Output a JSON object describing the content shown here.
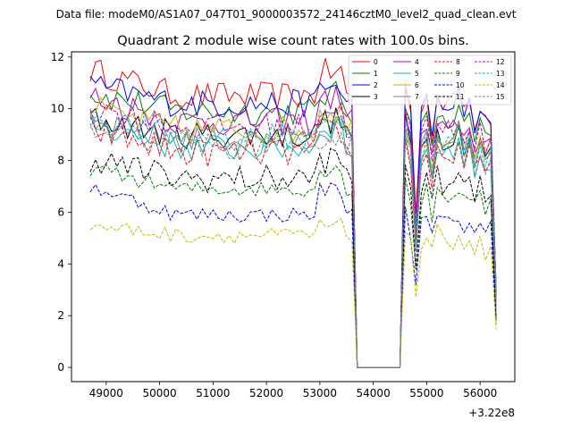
{
  "chart_data": {
    "type": "line",
    "suptitle": "Data file: modeM0/AS1A07_047T01_9000003572_24146cztM0_level2_quad_clean.evt",
    "title": "Quadrant 2 module wise count rates with 100.0s bins.",
    "xlabel": "",
    "ylabel": "",
    "x_offset_label": "+3.22e8",
    "xlim": [
      48350,
      56650
    ],
    "ylim": [
      -0.55,
      12.2
    ],
    "x_ticks": [
      49000,
      50000,
      51000,
      52000,
      53000,
      54000,
      55000,
      56000
    ],
    "x_tick_labels": [
      "49000",
      "50000",
      "51000",
      "52000",
      "53000",
      "54000",
      "55000",
      "56000"
    ],
    "y_ticks": [
      0,
      2,
      4,
      6,
      8,
      10,
      12
    ],
    "y_tick_labels": [
      "0",
      "2",
      "4",
      "6",
      "8",
      "10",
      "12"
    ],
    "legend": {
      "location": "top-right",
      "columns": 4
    },
    "segments": [
      {
        "x_start": 48700,
        "x_end": 53600,
        "shape": "wiggle"
      },
      {
        "x_start": 53700,
        "x_end": 54500,
        "shape": "zero"
      },
      {
        "x_start": 54600,
        "x_end": 56300,
        "shape": "end"
      }
    ],
    "series": [
      {
        "name": "0",
        "color": "#ff0000",
        "dashed": false,
        "start": 11.5,
        "mean": 10.5
      },
      {
        "name": "1",
        "color": "#008000",
        "dashed": false,
        "start": 10.6,
        "mean": 9.9
      },
      {
        "name": "2",
        "color": "#0000ff",
        "dashed": false,
        "start": 10.9,
        "mean": 10.2
      },
      {
        "name": "3",
        "color": "#000000",
        "dashed": false,
        "start": 9.6,
        "mean": 9.0
      },
      {
        "name": "4",
        "color": "#bf00bf",
        "dashed": false,
        "start": 10.5,
        "mean": 9.5
      },
      {
        "name": "5",
        "color": "#00bfbf",
        "dashed": false,
        "start": 9.5,
        "mean": 8.5
      },
      {
        "name": "6",
        "color": "#bfbf00",
        "dashed": false,
        "start": 10.0,
        "mean": 9.2
      },
      {
        "name": "7",
        "color": "#808080",
        "dashed": false,
        "start": 9.3,
        "mean": 8.8
      },
      {
        "name": "8",
        "color": "#ff0000",
        "dashed": true,
        "start": 9.2,
        "mean": 8.3
      },
      {
        "name": "9",
        "color": "#008000",
        "dashed": true,
        "start": 7.7,
        "mean": 6.9
      },
      {
        "name": "10",
        "color": "#0000ff",
        "dashed": true,
        "start": 7.0,
        "mean": 5.9
      },
      {
        "name": "11",
        "color": "#000000",
        "dashed": true,
        "start": 8.1,
        "mean": 7.3
      },
      {
        "name": "12",
        "color": "#bf00bf",
        "dashed": true,
        "start": 10.0,
        "mean": 9.3
      },
      {
        "name": "13",
        "color": "#00bfbf",
        "dashed": true,
        "start": 9.7,
        "mean": 8.9
      },
      {
        "name": "14",
        "color": "#bfbf00",
        "dashed": true,
        "start": 5.5,
        "mean": 5.1
      },
      {
        "name": "15",
        "color": "#808080",
        "dashed": true,
        "start": 9.0,
        "mean": 8.6
      }
    ]
  }
}
